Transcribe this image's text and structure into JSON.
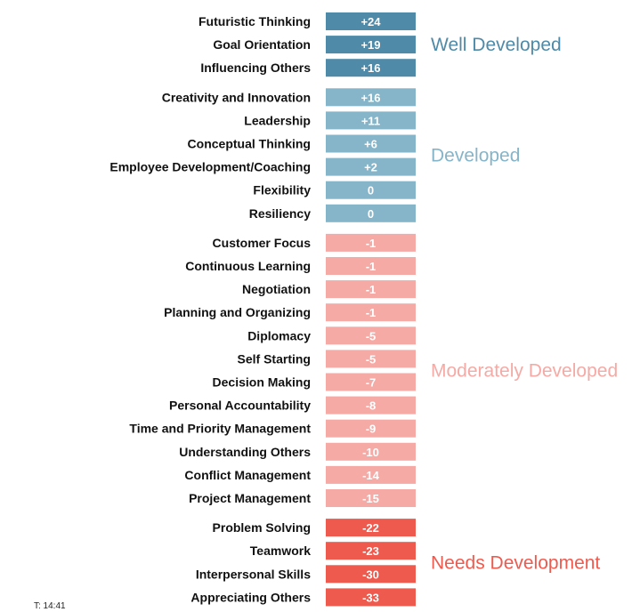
{
  "chart_data": {
    "type": "bar",
    "orientation": "horizontal",
    "groups": [
      {
        "name": "Well Developed",
        "color": "#4f8aa8",
        "items": [
          {
            "label": "Futuristic Thinking",
            "value": 24,
            "display": "+24"
          },
          {
            "label": "Goal Orientation",
            "value": 19,
            "display": "+19"
          },
          {
            "label": "Influencing Others",
            "value": 16,
            "display": "+16"
          }
        ]
      },
      {
        "name": "Developed",
        "color": "#86b4c8",
        "items": [
          {
            "label": "Creativity and Innovation",
            "value": 16,
            "display": "+16"
          },
          {
            "label": "Leadership",
            "value": 11,
            "display": "+11"
          },
          {
            "label": "Conceptual Thinking",
            "value": 6,
            "display": "+6"
          },
          {
            "label": "Employee Development/Coaching",
            "value": 2,
            "display": "+2"
          },
          {
            "label": "Flexibility",
            "value": 0,
            "display": "0"
          },
          {
            "label": "Resiliency",
            "value": 0,
            "display": "0"
          }
        ]
      },
      {
        "name": "Moderately Developed",
        "color": "#f5aaa5",
        "items": [
          {
            "label": "Customer Focus",
            "value": -1,
            "display": "-1"
          },
          {
            "label": "Continuous Learning",
            "value": -1,
            "display": "-1"
          },
          {
            "label": "Negotiation",
            "value": -1,
            "display": "-1"
          },
          {
            "label": "Planning and Organizing",
            "value": -1,
            "display": "-1"
          },
          {
            "label": "Diplomacy",
            "value": -5,
            "display": "-5"
          },
          {
            "label": "Self Starting",
            "value": -5,
            "display": "-5"
          },
          {
            "label": "Decision Making",
            "value": -7,
            "display": "-7"
          },
          {
            "label": "Personal Accountability",
            "value": -8,
            "display": "-8"
          },
          {
            "label": "Time and Priority Management",
            "value": -9,
            "display": "-9"
          },
          {
            "label": "Understanding Others",
            "value": -10,
            "display": "-10"
          },
          {
            "label": "Conflict Management",
            "value": -14,
            "display": "-14"
          },
          {
            "label": "Project Management",
            "value": -15,
            "display": "-15"
          }
        ]
      },
      {
        "name": "Needs Development",
        "color": "#ef5a4e",
        "items": [
          {
            "label": "Problem Solving",
            "value": -22,
            "display": "-22"
          },
          {
            "label": "Teamwork",
            "value": -23,
            "display": "-23"
          },
          {
            "label": "Interpersonal Skills",
            "value": -30,
            "display": "-30"
          },
          {
            "label": "Appreciating Others",
            "value": -33,
            "display": "-33"
          }
        ]
      }
    ],
    "title": "",
    "xlabel": "",
    "ylabel": "",
    "grid": false,
    "legend": "none"
  },
  "footer": {
    "text": "T: 14:41"
  }
}
